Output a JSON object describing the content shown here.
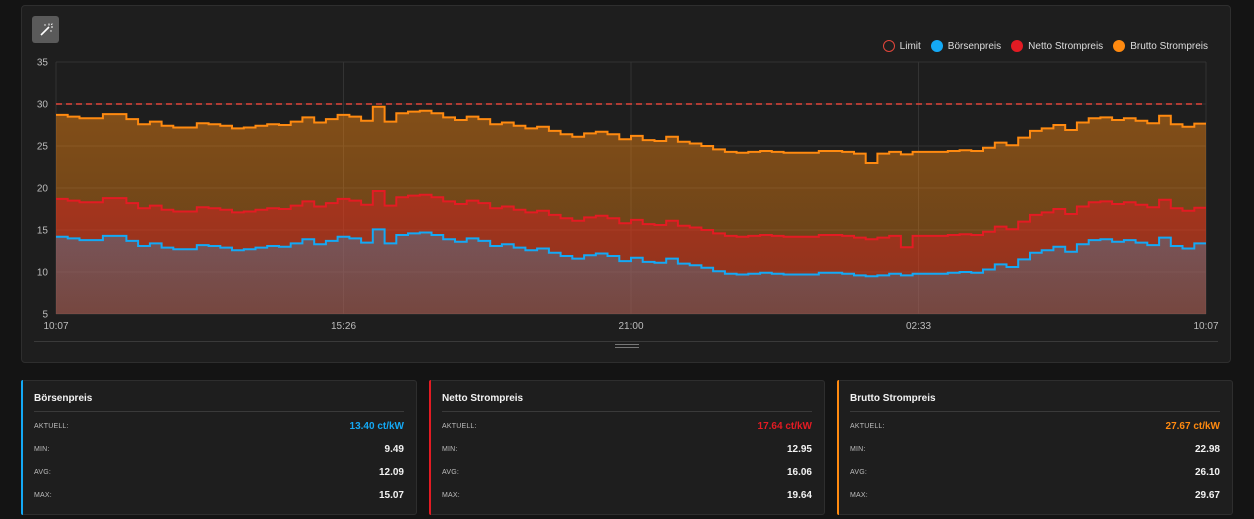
{
  "legend": [
    {
      "label": "Limit",
      "color": "#e0453a",
      "hollow": true
    },
    {
      "label": "Börsenpreis",
      "color": "#14a9f5",
      "hollow": false
    },
    {
      "label": "Netto Strompreis",
      "color": "#e31b23",
      "hollow": false
    },
    {
      "label": "Brutto Strompreis",
      "color": "#ff8a10",
      "hollow": false
    }
  ],
  "chart_data": {
    "type": "area",
    "x_tick_labels": [
      "10:07",
      "15:26",
      "21:00",
      "02:33",
      "10:07"
    ],
    "y_ticks": [
      35,
      30,
      25,
      20,
      15,
      10,
      5
    ],
    "ylim": [
      5,
      35
    ],
    "grid": true,
    "legend_position": "top-right",
    "limit": 30,
    "series": [
      {
        "name": "Börsenpreis",
        "color": "#14a9f5",
        "values": [
          14.2,
          14.0,
          13.8,
          13.8,
          14.3,
          14.3,
          13.7,
          13.1,
          13.4,
          12.9,
          12.7,
          12.7,
          13.2,
          13.1,
          12.9,
          12.6,
          12.7,
          12.9,
          13.1,
          13.0,
          13.4,
          13.9,
          13.3,
          13.7,
          14.2,
          14.0,
          13.5,
          15.07,
          13.4,
          14.4,
          14.6,
          14.7,
          14.4,
          13.9,
          13.6,
          14.0,
          13.7,
          13.1,
          13.3,
          12.9,
          12.6,
          12.8,
          12.3,
          11.9,
          11.6,
          12.0,
          12.2,
          11.9,
          11.3,
          11.7,
          11.2,
          11.1,
          11.6,
          11.0,
          10.8,
          10.5,
          10.1,
          9.8,
          9.7,
          9.8,
          9.9,
          9.8,
          9.7,
          9.7,
          9.7,
          9.9,
          9.9,
          9.8,
          9.6,
          9.49,
          9.6,
          9.8,
          9.6,
          9.8,
          9.8,
          9.8,
          9.9,
          10.0,
          9.9,
          10.3,
          10.9,
          10.6,
          11.5,
          12.3,
          12.6,
          13.0,
          12.4,
          13.3,
          13.8,
          13.9,
          13.6,
          13.8,
          13.5,
          13.2,
          14.1,
          13.1,
          12.8,
          13.4
        ]
      },
      {
        "name": "Netto Strompreis",
        "color": "#e31b23",
        "values": [
          18.7,
          18.5,
          18.3,
          18.3,
          18.8,
          18.8,
          18.2,
          17.6,
          17.9,
          17.4,
          17.2,
          17.2,
          17.7,
          17.6,
          17.4,
          17.1,
          17.2,
          17.4,
          17.6,
          17.5,
          17.9,
          18.4,
          17.8,
          18.2,
          18.7,
          18.5,
          18.0,
          19.64,
          17.9,
          18.9,
          19.1,
          19.2,
          18.9,
          18.4,
          18.1,
          18.5,
          18.2,
          17.6,
          17.8,
          17.4,
          17.1,
          17.3,
          16.8,
          16.4,
          16.1,
          16.5,
          16.7,
          16.4,
          15.8,
          16.2,
          15.7,
          15.6,
          16.1,
          15.5,
          15.3,
          15.0,
          14.6,
          14.3,
          14.2,
          14.3,
          14.4,
          14.3,
          14.2,
          14.2,
          14.2,
          14.4,
          14.4,
          14.3,
          14.1,
          13.9,
          14.1,
          14.3,
          12.95,
          14.3,
          14.3,
          14.3,
          14.4,
          14.5,
          14.4,
          14.8,
          15.4,
          15.1,
          16.0,
          16.8,
          17.1,
          17.5,
          16.9,
          17.8,
          18.3,
          18.4,
          18.1,
          18.3,
          18.0,
          17.7,
          18.6,
          17.6,
          17.3,
          17.64
        ]
      },
      {
        "name": "Brutto Strompreis",
        "color": "#ff8a10",
        "values": [
          28.7,
          28.5,
          28.3,
          28.3,
          28.8,
          28.8,
          28.2,
          27.6,
          27.9,
          27.4,
          27.2,
          27.2,
          27.7,
          27.6,
          27.4,
          27.1,
          27.2,
          27.4,
          27.6,
          27.5,
          27.9,
          28.4,
          27.8,
          28.2,
          28.7,
          28.5,
          28.0,
          29.67,
          27.9,
          28.9,
          29.1,
          29.2,
          28.9,
          28.4,
          28.1,
          28.5,
          28.2,
          27.6,
          27.8,
          27.4,
          27.1,
          27.3,
          26.8,
          26.4,
          26.1,
          26.5,
          26.7,
          26.4,
          25.8,
          26.2,
          25.7,
          25.6,
          26.1,
          25.5,
          25.3,
          25.0,
          24.6,
          24.3,
          24.2,
          24.3,
          24.4,
          24.3,
          24.2,
          24.2,
          24.2,
          24.4,
          24.4,
          24.3,
          24.1,
          22.98,
          24.1,
          24.3,
          24.0,
          24.3,
          24.3,
          24.3,
          24.4,
          24.5,
          24.4,
          24.8,
          25.4,
          25.1,
          26.0,
          26.8,
          27.1,
          27.5,
          26.9,
          27.8,
          28.3,
          28.4,
          28.1,
          28.3,
          28.0,
          27.7,
          28.6,
          27.6,
          27.3,
          27.67
        ]
      }
    ]
  },
  "cards": [
    {
      "title": "Börsenpreis",
      "color": "#14a9f5",
      "labels": {
        "current": "AKTUELL:",
        "min": "MIN:",
        "avg": "AVG:",
        "max": "MAX:"
      },
      "current": "13.40 ct/kW",
      "min": "9.49",
      "avg": "12.09",
      "max": "15.07"
    },
    {
      "title": "Netto Strompreis",
      "color": "#e31b23",
      "labels": {
        "current": "AKTUELL:",
        "min": "MIN:",
        "avg": "AVG:",
        "max": "MAX:"
      },
      "current": "17.64 ct/kW",
      "min": "12.95",
      "avg": "16.06",
      "max": "19.64"
    },
    {
      "title": "Brutto Strompreis",
      "color": "#ff8a10",
      "labels": {
        "current": "AKTUELL:",
        "min": "MIN:",
        "avg": "AVG:",
        "max": "MAX:"
      },
      "current": "27.67 ct/kW",
      "min": "22.98",
      "avg": "26.10",
      "max": "29.67"
    }
  ],
  "icons": {
    "wand": "magic-wand-icon",
    "resize": "resize-handle-icon"
  }
}
